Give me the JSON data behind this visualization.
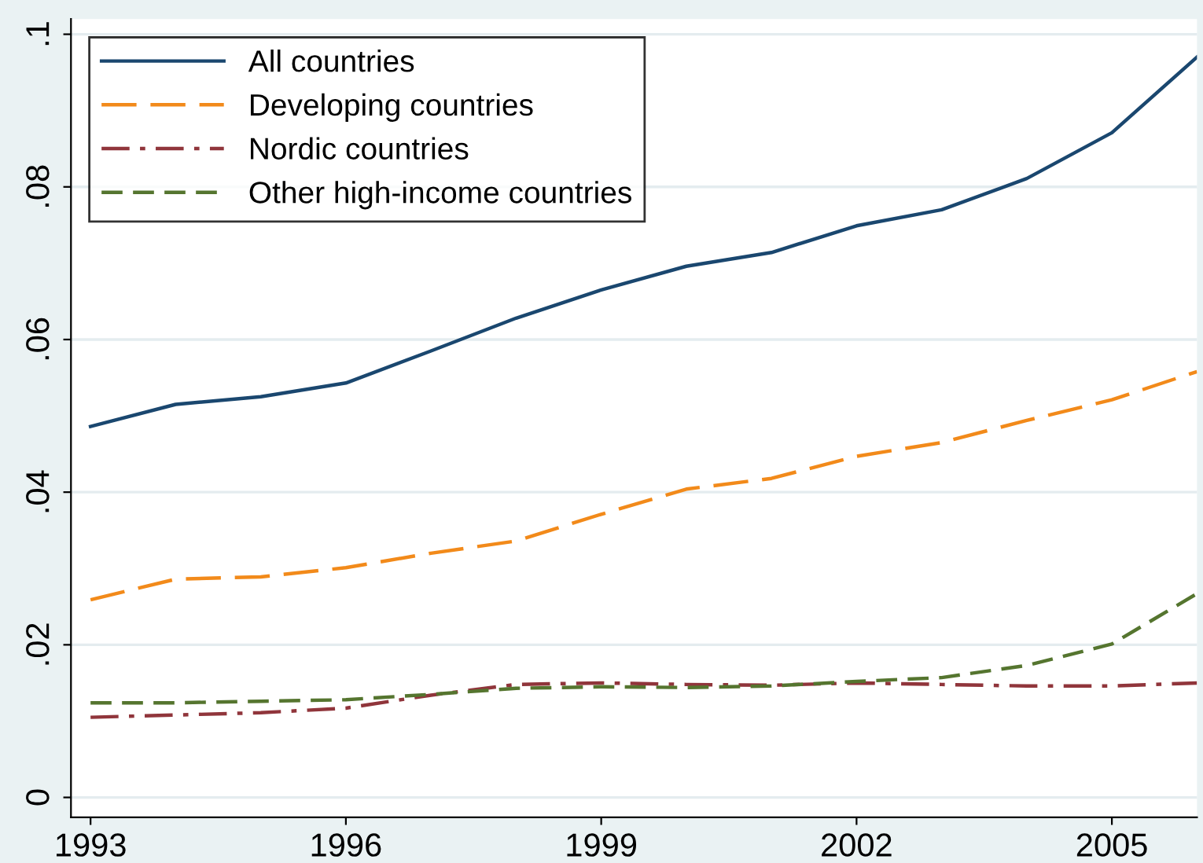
{
  "chart_data": {
    "type": "line",
    "x": [
      1993,
      1994,
      1995,
      1996,
      1997,
      1998,
      1999,
      2000,
      2001,
      2002,
      2003,
      2004,
      2005,
      2006
    ],
    "series": [
      {
        "name": "All countries",
        "color": "#1a476f",
        "line_style": "solid",
        "values": [
          0.0486,
          0.0515,
          0.0525,
          0.0543,
          0.0585,
          0.0628,
          0.0665,
          0.0696,
          0.0714,
          0.0749,
          0.077,
          0.0811,
          0.0871,
          0.097
        ]
      },
      {
        "name": "Developing countries",
        "color": "#f28a1a",
        "line_style": "longdash",
        "values": [
          0.0259,
          0.0286,
          0.0289,
          0.0301,
          0.032,
          0.0336,
          0.0371,
          0.0404,
          0.0418,
          0.0447,
          0.0465,
          0.0494,
          0.0521,
          0.0558
        ]
      },
      {
        "name": "Nordic countries",
        "color": "#90353b",
        "line_style": "dashdot",
        "values": [
          0.0105,
          0.0108,
          0.0111,
          0.0117,
          0.0134,
          0.0148,
          0.015,
          0.0148,
          0.0147,
          0.015,
          0.0148,
          0.0146,
          0.0146,
          0.015
        ]
      },
      {
        "name": "Other high-income countries",
        "color": "#55752f",
        "line_style": "dashed",
        "values": [
          0.0124,
          0.0124,
          0.0126,
          0.0128,
          0.0135,
          0.0143,
          0.0145,
          0.0144,
          0.0146,
          0.0152,
          0.0157,
          0.0173,
          0.0201,
          0.0267
        ]
      }
    ],
    "xlim": [
      1992.77,
      2006
    ],
    "xticks": [
      1993,
      1996,
      1999,
      2002,
      2005
    ],
    "ylim": [
      -0.0026,
      0.102
    ],
    "yticks": [
      0,
      {
        "value": 0.02,
        "label": ".02"
      },
      {
        "value": 0.04,
        "label": ".04"
      },
      {
        "value": 0.06,
        "label": ".06"
      },
      {
        "value": 0.08,
        "label": ".08"
      },
      {
        "value": 0.1,
        "label": ".1"
      }
    ],
    "grid": "y",
    "legend": "top left",
    "marker": "none"
  }
}
